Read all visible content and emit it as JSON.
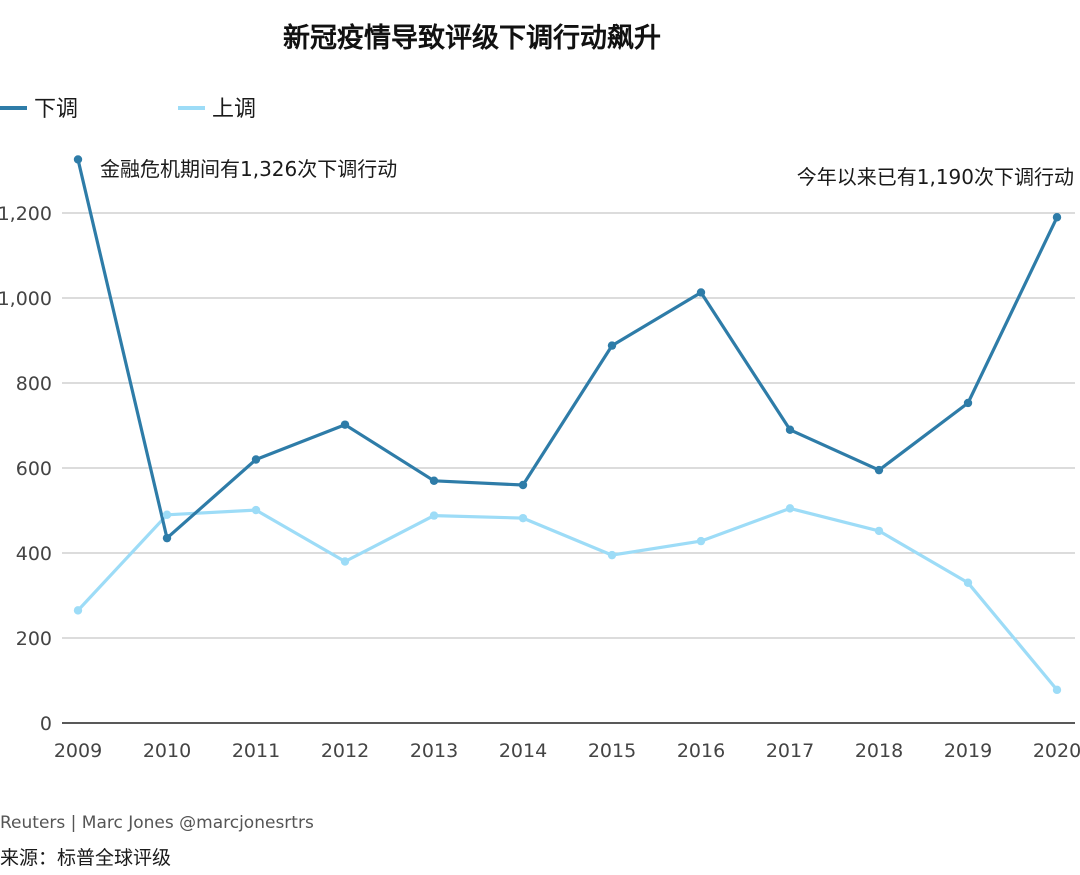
{
  "chart_data": {
    "type": "line",
    "title": "新冠疫情导致评级下调行动飙升",
    "x": [
      "2009",
      "2010",
      "2011",
      "2012",
      "2013",
      "2014",
      "2015",
      "2016",
      "2017",
      "2018",
      "2019",
      "2020"
    ],
    "series": [
      {
        "name": "下调",
        "color": "#2e7ca8",
        "values": [
          1326,
          435,
          620,
          702,
          570,
          560,
          888,
          1013,
          690,
          595,
          753,
          1190
        ]
      },
      {
        "name": "上调",
        "color": "#9ddcf7",
        "values": [
          265,
          490,
          501,
          380,
          488,
          482,
          395,
          428,
          505,
          452,
          330,
          78
        ]
      }
    ],
    "ylim": [
      0,
      1300
    ],
    "yticks": [
      0,
      200,
      400,
      600,
      800,
      1000,
      1200
    ],
    "ytick_labels": [
      "0",
      "200",
      "400",
      "600",
      "800",
      "1,000",
      "1,200"
    ],
    "grid": true,
    "legend_position": "top-left",
    "annotations": [
      "金融危机期间有1,326次下调行动",
      "今年以来已有1,190次下调行动"
    ]
  },
  "credit": "Reuters | Marc Jones @marcjonesrtrs",
  "source": "来源：标普全球评级"
}
